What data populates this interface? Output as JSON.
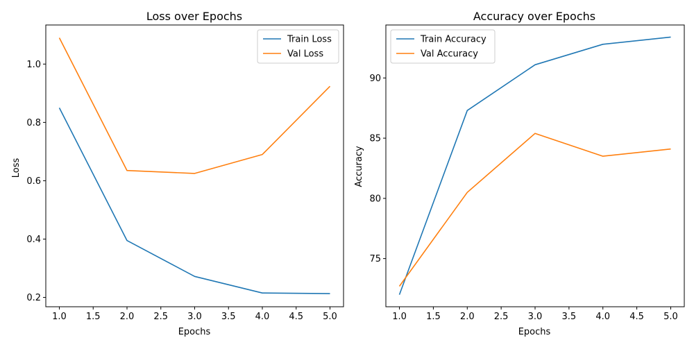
{
  "chart_data": [
    {
      "type": "line",
      "title": "Loss over Epochs",
      "xlabel": "Epochs",
      "ylabel": "Loss",
      "x": [
        1,
        2,
        3,
        4,
        5
      ],
      "xlim": [
        0.8,
        5.2
      ],
      "ylim": [
        0.168,
        1.134
      ],
      "xticks": [
        1.0,
        1.5,
        2.0,
        2.5,
        3.0,
        3.5,
        4.0,
        4.5,
        5.0
      ],
      "yticks": [
        0.2,
        0.4,
        0.6,
        0.8,
        1.0
      ],
      "xtick_labels": [
        "1.0",
        "1.5",
        "2.0",
        "2.5",
        "3.0",
        "3.5",
        "4.0",
        "4.5",
        "5.0"
      ],
      "ytick_labels": [
        "0.2",
        "0.4",
        "0.6",
        "0.8",
        "1.0"
      ],
      "grid": false,
      "legend_position": "top-right",
      "series": [
        {
          "name": "Train Loss",
          "color": "#1f77b4",
          "values": [
            0.85,
            0.395,
            0.272,
            0.215,
            0.213
          ]
        },
        {
          "name": "Val Loss",
          "color": "#ff7f0e",
          "values": [
            1.09,
            0.635,
            0.625,
            0.69,
            0.924
          ]
        }
      ]
    },
    {
      "type": "line",
      "title": "Accuracy over Epochs",
      "xlabel": "Epochs",
      "ylabel": "Accuracy",
      "x": [
        1,
        2,
        3,
        4,
        5
      ],
      "xlim": [
        0.8,
        5.2
      ],
      "ylim": [
        71.0,
        94.4
      ],
      "xticks": [
        1.0,
        1.5,
        2.0,
        2.5,
        3.0,
        3.5,
        4.0,
        4.5,
        5.0
      ],
      "yticks": [
        75,
        80,
        85,
        90
      ],
      "xtick_labels": [
        "1.0",
        "1.5",
        "2.0",
        "2.5",
        "3.0",
        "3.5",
        "4.0",
        "4.5",
        "5.0"
      ],
      "ytick_labels": [
        "75",
        "80",
        "85",
        "90"
      ],
      "grid": false,
      "legend_position": "top-left",
      "series": [
        {
          "name": "Train Accuracy",
          "color": "#1f77b4",
          "values": [
            72.0,
            87.3,
            91.1,
            92.8,
            93.4
          ]
        },
        {
          "name": "Val Accuracy",
          "color": "#ff7f0e",
          "values": [
            72.7,
            80.5,
            85.4,
            83.5,
            84.1
          ]
        }
      ]
    }
  ]
}
